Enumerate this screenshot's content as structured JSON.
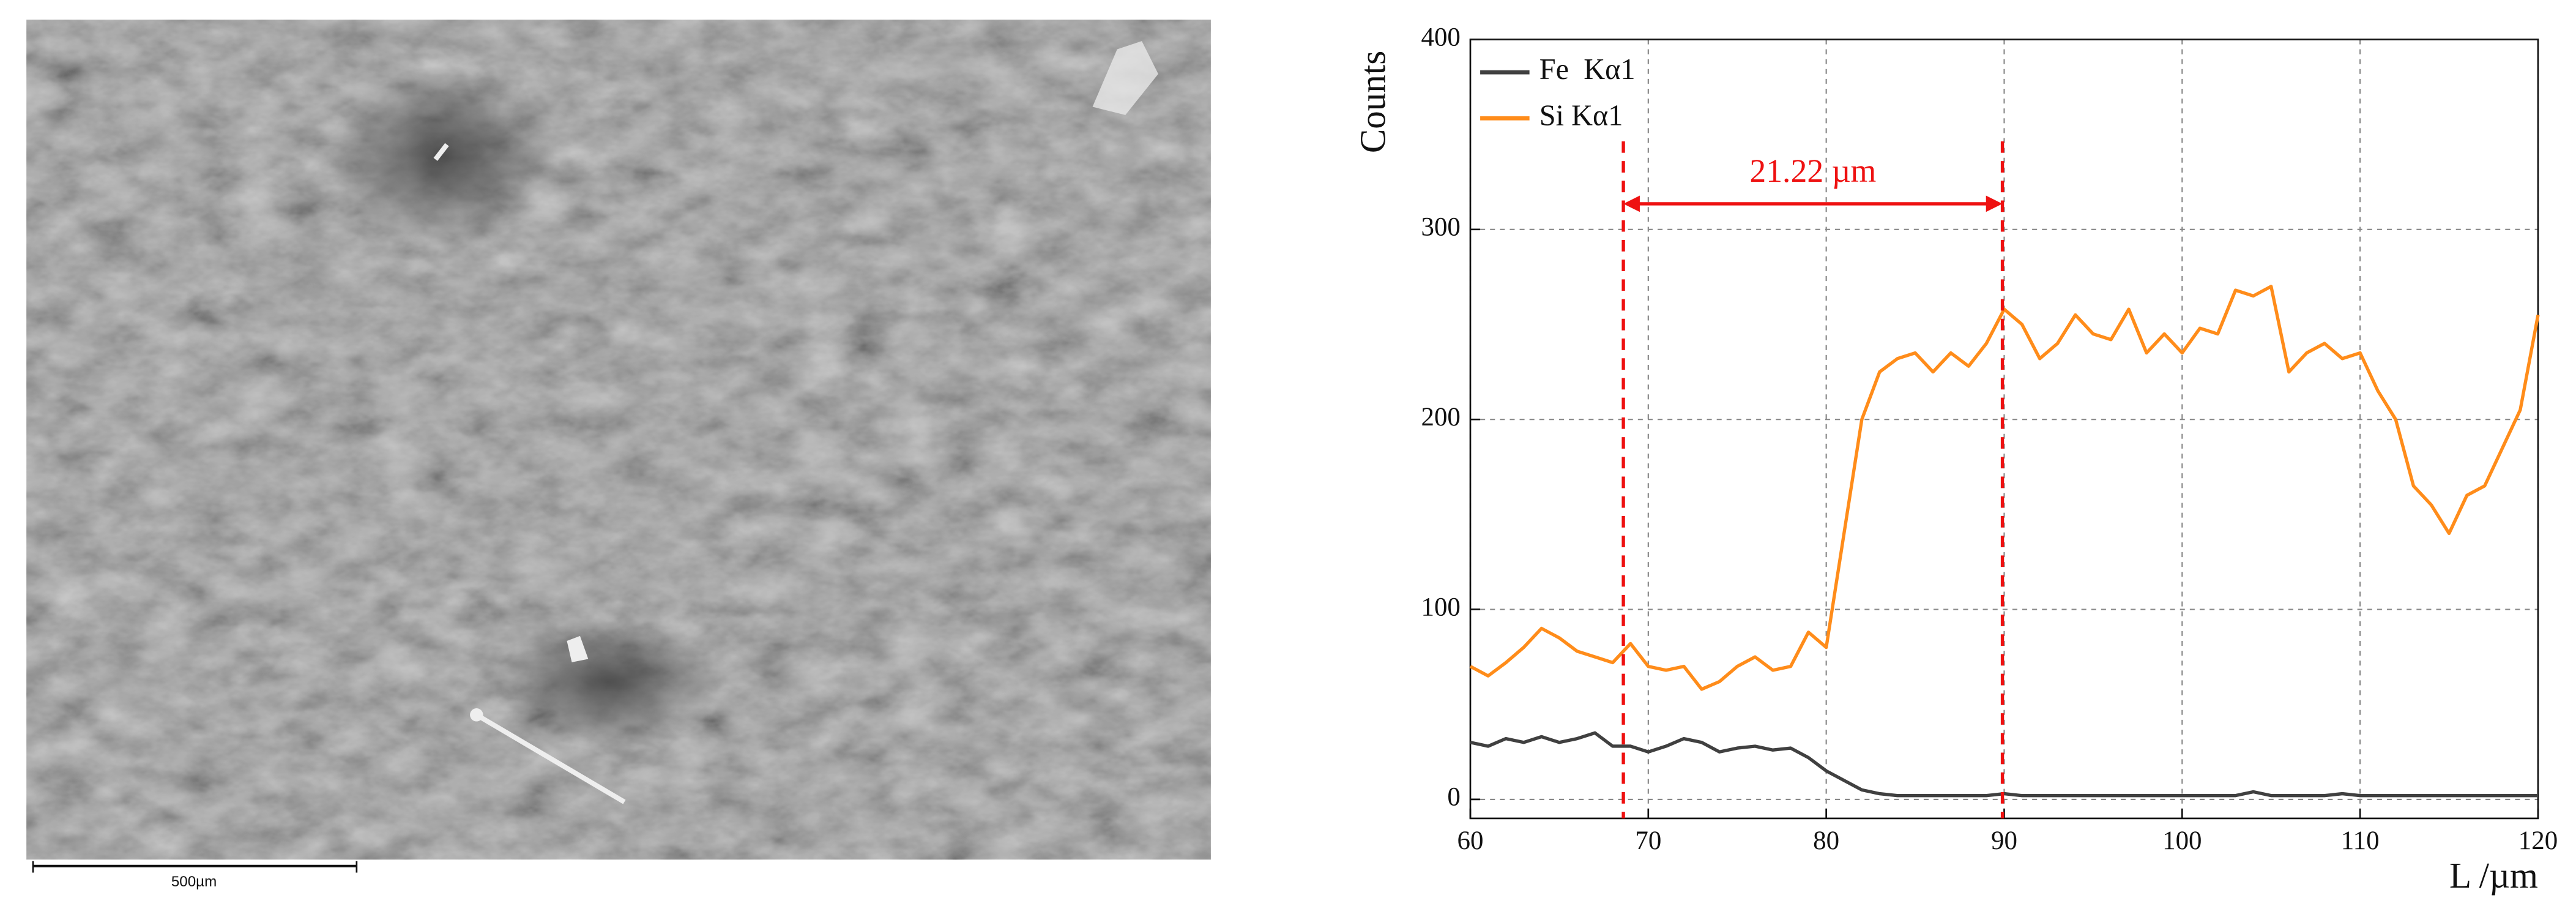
{
  "image": {
    "scale_bar": "500µm"
  },
  "chart_data": {
    "type": "line",
    "xlabel": "L /µm",
    "ylabel": "Counts",
    "x": [
      60,
      61,
      62,
      63,
      64,
      65,
      66,
      67,
      68,
      69,
      70,
      71,
      72,
      73,
      74,
      75,
      76,
      77,
      78,
      79,
      80,
      81,
      82,
      83,
      84,
      85,
      86,
      87,
      88,
      89,
      90,
      91,
      92,
      93,
      94,
      95,
      96,
      97,
      98,
      99,
      100,
      101,
      102,
      103,
      104,
      105,
      106,
      107,
      108,
      109,
      110,
      111,
      112,
      113,
      114,
      115,
      116,
      117,
      118,
      119,
      120
    ],
    "series": [
      {
        "name": "Fe  Kα1",
        "color": "#404040",
        "values": [
          30,
          28,
          32,
          30,
          33,
          30,
          32,
          35,
          28,
          28,
          25,
          28,
          32,
          30,
          25,
          27,
          28,
          26,
          27,
          22,
          15,
          10,
          5,
          3,
          2,
          2,
          2,
          2,
          2,
          2,
          3,
          2,
          2,
          2,
          2,
          2,
          2,
          2,
          2,
          2,
          2,
          2,
          2,
          2,
          4,
          2,
          2,
          2,
          2,
          3,
          2,
          2,
          2,
          2,
          2,
          2,
          2,
          2,
          2,
          2,
          2
        ]
      },
      {
        "name": "Si Kα1",
        "color": "#ff8c1a",
        "values": [
          70,
          65,
          72,
          80,
          90,
          85,
          78,
          75,
          72,
          82,
          70,
          68,
          70,
          58,
          62,
          70,
          75,
          68,
          70,
          88,
          80,
          140,
          200,
          225,
          232,
          235,
          225,
          235,
          228,
          240,
          258,
          250,
          232,
          240,
          255,
          245,
          242,
          258,
          235,
          245,
          235,
          248,
          245,
          268,
          265,
          270,
          225,
          235,
          240,
          232,
          235,
          215,
          200,
          165,
          155,
          140,
          160,
          165,
          185,
          205,
          255
        ]
      }
    ],
    "xlim": [
      60,
      120
    ],
    "ylim": [
      -10,
      400
    ],
    "xticks": [
      60,
      70,
      80,
      90,
      100,
      110,
      120
    ],
    "yticks": [
      0,
      100,
      200,
      300,
      400
    ],
    "grid": true,
    "legend": "upper left",
    "annotations": [
      {
        "label": "21.22 µm",
        "from": 68.6,
        "to": 89.9,
        "color": "#ee1111"
      }
    ]
  }
}
